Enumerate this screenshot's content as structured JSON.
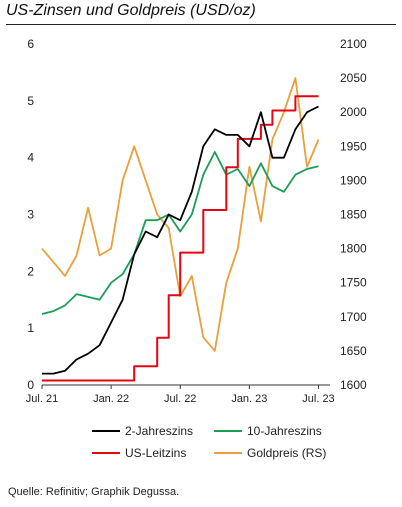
{
  "title": "US-Zinsen und Goldpreis (USD/oz)",
  "source": "Quelle: Refinitiv; Graphik Degussa.",
  "chart_data": {
    "type": "line",
    "x_tick_labels": [
      "Jul. 21",
      "Jan. 22",
      "Jul. 22",
      "Jan. 23",
      "Jul. 23"
    ],
    "x_ticks": [
      "2021-07",
      "2022-01",
      "2022-07",
      "2023-01",
      "2023-07"
    ],
    "y_left": {
      "ylim": [
        0,
        6
      ],
      "ticks": [
        "0",
        "1",
        "2",
        "3",
        "4",
        "5",
        "6"
      ]
    },
    "y_right": {
      "ylim": [
        1600,
        2100
      ],
      "ticks": [
        "1600",
        "1650",
        "1700",
        "1750",
        "1800",
        "1850",
        "1900",
        "1950",
        "2000",
        "2050",
        "2100"
      ]
    },
    "grid": false,
    "legend_position": "bottom",
    "series": [
      {
        "name": "2-Jahreszins",
        "axis": "left",
        "color": "#000000",
        "x": [
          "2021-07",
          "2021-08",
          "2021-09",
          "2021-10",
          "2021-11",
          "2021-12",
          "2022-01",
          "2022-02",
          "2022-03",
          "2022-04",
          "2022-05",
          "2022-06",
          "2022-07",
          "2022-08",
          "2022-09",
          "2022-10",
          "2022-11",
          "2022-12",
          "2023-01",
          "2023-02",
          "2023-03",
          "2023-04",
          "2023-05",
          "2023-06",
          "2023-07"
        ],
        "values": [
          0.2,
          0.2,
          0.25,
          0.45,
          0.55,
          0.7,
          1.1,
          1.5,
          2.3,
          2.7,
          2.6,
          3.0,
          2.9,
          3.4,
          4.2,
          4.5,
          4.4,
          4.4,
          4.2,
          4.8,
          4.0,
          4.0,
          4.5,
          4.8,
          4.9
        ]
      },
      {
        "name": "10-Jahreszins",
        "axis": "left",
        "color": "#1a9e55",
        "x": [
          "2021-07",
          "2021-08",
          "2021-09",
          "2021-10",
          "2021-11",
          "2021-12",
          "2022-01",
          "2022-02",
          "2022-03",
          "2022-04",
          "2022-05",
          "2022-06",
          "2022-07",
          "2022-08",
          "2022-09",
          "2022-10",
          "2022-11",
          "2022-12",
          "2023-01",
          "2023-02",
          "2023-03",
          "2023-04",
          "2023-05",
          "2023-06",
          "2023-07"
        ],
        "values": [
          1.25,
          1.3,
          1.4,
          1.6,
          1.55,
          1.5,
          1.8,
          1.95,
          2.3,
          2.9,
          2.9,
          3.0,
          2.7,
          3.0,
          3.7,
          4.1,
          3.7,
          3.8,
          3.5,
          3.9,
          3.5,
          3.4,
          3.7,
          3.8,
          3.85
        ]
      },
      {
        "name": "US-Leitzins",
        "axis": "left",
        "color": "#e30613",
        "x": [
          "2021-07",
          "2022-03",
          "2022-05",
          "2022-06",
          "2022-07",
          "2022-09",
          "2022-11",
          "2022-12",
          "2023-02",
          "2023-03",
          "2023-05",
          "2023-07"
        ],
        "values": [
          0.08,
          0.33,
          0.83,
          1.58,
          2.33,
          3.08,
          3.83,
          4.33,
          4.58,
          4.83,
          5.08,
          5.08
        ]
      },
      {
        "name": "Goldpreis (RS)",
        "axis": "right",
        "color": "#e8a13a",
        "x": [
          "2021-07",
          "2021-08",
          "2021-09",
          "2021-10",
          "2021-11",
          "2021-12",
          "2022-01",
          "2022-02",
          "2022-03",
          "2022-04",
          "2022-05",
          "2022-06",
          "2022-07",
          "2022-08",
          "2022-09",
          "2022-10",
          "2022-11",
          "2022-12",
          "2023-01",
          "2023-02",
          "2023-03",
          "2023-04",
          "2023-05",
          "2023-06",
          "2023-07"
        ],
        "values": [
          1800,
          1780,
          1760,
          1790,
          1860,
          1790,
          1800,
          1900,
          1950,
          1900,
          1850,
          1830,
          1730,
          1760,
          1670,
          1650,
          1750,
          1800,
          1920,
          1840,
          1960,
          2000,
          2050,
          1920,
          1960
        ]
      }
    ]
  }
}
